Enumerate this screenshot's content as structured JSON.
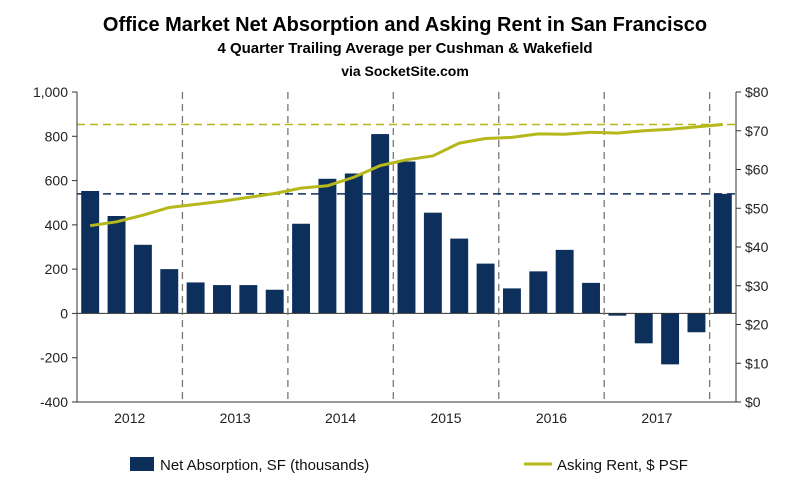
{
  "chart_data": {
    "type": "bar+line",
    "title": "Office Market Net Absorption and Asking Rent in San Francisco",
    "subtitle": "4 Quarter Trailing Average per Cushman & Wakefield",
    "source": "via SocketSite.com",
    "years": [
      "2012",
      "2013",
      "2014",
      "2015",
      "2016",
      "2017"
    ],
    "quarters_per_year": 4,
    "y_left": {
      "ylim": [
        -400,
        1000
      ],
      "ticks": [
        "-400",
        "-200",
        "0",
        "200",
        "400",
        "600",
        "800",
        "1,000"
      ]
    },
    "y_right": {
      "ylim": [
        0,
        80
      ],
      "ticks": [
        "$0",
        "$10",
        "$20",
        "$30",
        "$40",
        "$50",
        "$60",
        "$70",
        "$80"
      ]
    },
    "series": [
      {
        "name": "Net Absorption, SF (thousands)",
        "type": "bar",
        "axis": "left",
        "color": "#0d2f5c",
        "values": [
          553,
          440,
          310,
          200,
          140,
          128,
          128,
          107,
          405,
          608,
          632,
          810,
          686,
          455,
          338,
          225,
          113,
          190,
          287,
          138,
          -10,
          -135,
          -230,
          -85,
          540
        ]
      },
      {
        "name": "Asking Rent, $ PSF",
        "type": "line",
        "axis": "right",
        "color": "#b5b81a",
        "values": [
          45.5,
          46.5,
          48.2,
          50.2,
          51.0,
          51.8,
          52.8,
          53.8,
          55.2,
          55.8,
          58.0,
          61.0,
          62.5,
          63.5,
          66.8,
          68.0,
          68.3,
          69.2,
          69.1,
          69.6,
          69.4,
          70.0,
          70.4,
          71.0,
          71.6
        ]
      }
    ],
    "reference_lines": [
      {
        "axis": "left",
        "value": 540,
        "color": "#0d2f5c",
        "style": "dashed"
      },
      {
        "axis": "right",
        "value": 71.6,
        "color": "#b5b81a",
        "style": "dashed"
      }
    ],
    "legend": {
      "position": "bottom"
    },
    "grid": false
  }
}
